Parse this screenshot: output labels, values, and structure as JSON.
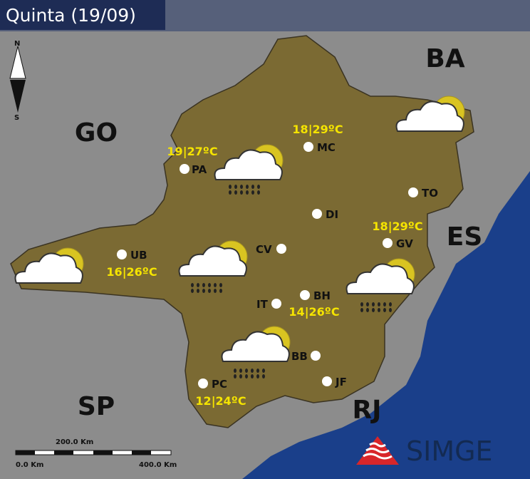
{
  "title": "Quinta (19/09)",
  "compass": {
    "north": "N",
    "south": "S"
  },
  "states": [
    "GO",
    "BA",
    "ES",
    "SP",
    "RJ"
  ],
  "cities": [
    "PA",
    "MC",
    "DI",
    "TO",
    "GV",
    "CV",
    "UB",
    "IT",
    "BH",
    "BB",
    "JF",
    "PC"
  ],
  "forecasts": [
    "18|29ºC",
    "19|27ºC",
    "18|29ºC",
    "16|26ºC",
    "14|26ºC",
    "12|24ºC"
  ],
  "scale_bar": {
    "mid": "200.0 Km",
    "start": "0.0 Km",
    "end": "400.0 Km"
  },
  "logo": "SIMGE"
}
